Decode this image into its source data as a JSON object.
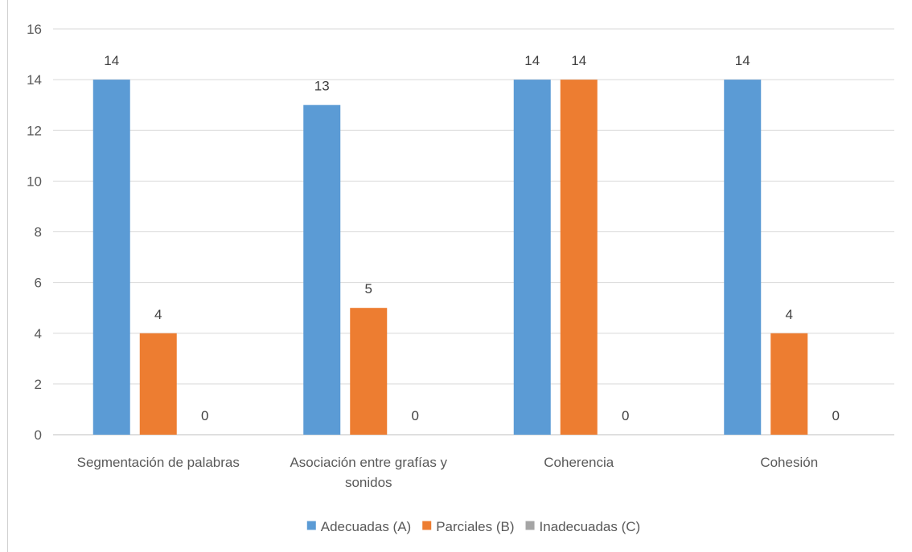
{
  "chart_data": {
    "type": "bar",
    "categories": [
      [
        "Segmentación de palabras"
      ],
      [
        "Asociación entre grafías y",
        "sonidos"
      ],
      [
        "Coherencia"
      ],
      [
        "Cohesión"
      ]
    ],
    "series": [
      {
        "name": "Adecuadas (A)",
        "color": "#5b9bd5",
        "values": [
          14,
          13,
          14,
          14
        ]
      },
      {
        "name": "Parciales (B)",
        "color": "#ed7d31",
        "values": [
          4,
          5,
          14,
          4
        ]
      },
      {
        "name": "Inadecuadas (C)",
        "color": "#a5a5a5",
        "values": [
          0,
          0,
          0,
          0
        ]
      }
    ],
    "ylim": [
      0,
      16
    ],
    "yticks": [
      0,
      2,
      4,
      6,
      8,
      10,
      12,
      14,
      16
    ],
    "grid": true,
    "legend": "bottom-center",
    "data_labels": true
  }
}
